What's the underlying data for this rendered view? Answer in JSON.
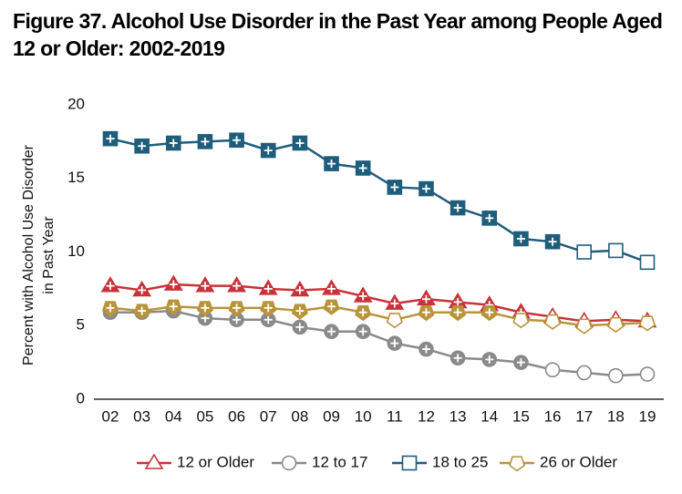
{
  "chart_data": {
    "type": "line",
    "title": "Figure 37. Alcohol Use Disorder in the Past Year among People Aged 12 or Older: 2002-2019",
    "ylabel": [
      "Percent with Alcohol Use Disorder",
      "in Past Year"
    ],
    "categories": [
      "02",
      "03",
      "04",
      "05",
      "06",
      "07",
      "08",
      "09",
      "10",
      "11",
      "12",
      "13",
      "14",
      "15",
      "16",
      "17",
      "18",
      "19"
    ],
    "ylim": [
      0,
      20
    ],
    "yticks": [
      0,
      5,
      10,
      15,
      20
    ],
    "grid": false,
    "legend": "bottom",
    "series": [
      {
        "name": "12 or Older",
        "color": "#c8323a",
        "marker": "triangle",
        "values": [
          7.7,
          7.4,
          7.8,
          7.7,
          7.7,
          7.5,
          7.4,
          7.5,
          7.0,
          6.5,
          6.8,
          6.6,
          6.4,
          5.9,
          5.6,
          5.3,
          5.4,
          5.3
        ],
        "filled": [
          true,
          true,
          true,
          true,
          true,
          true,
          true,
          true,
          true,
          true,
          true,
          true,
          true,
          true,
          false,
          false,
          false,
          false
        ]
      },
      {
        "name": "12 to 17",
        "color": "#8a8a8a",
        "marker": "circle",
        "values": [
          5.9,
          5.9,
          6.0,
          5.5,
          5.4,
          5.4,
          4.9,
          4.6,
          4.6,
          3.8,
          3.4,
          2.8,
          2.7,
          2.5,
          2.0,
          1.8,
          1.6,
          1.7
        ],
        "filled": [
          true,
          true,
          true,
          true,
          true,
          true,
          true,
          true,
          true,
          true,
          true,
          true,
          true,
          true,
          false,
          false,
          false,
          false
        ]
      },
      {
        "name": "18 to 25",
        "color": "#1f5e7a",
        "marker": "square",
        "values": [
          17.7,
          17.2,
          17.4,
          17.5,
          17.6,
          16.9,
          17.4,
          16.0,
          15.7,
          14.4,
          14.3,
          13.0,
          12.3,
          10.9,
          10.7,
          10.0,
          10.1,
          9.3
        ],
        "filled": [
          true,
          true,
          true,
          true,
          true,
          true,
          true,
          true,
          true,
          true,
          true,
          true,
          true,
          true,
          true,
          false,
          false,
          false
        ]
      },
      {
        "name": "26 or Older",
        "color": "#b8953a",
        "marker": "pentagon",
        "values": [
          6.2,
          6.0,
          6.3,
          6.2,
          6.2,
          6.2,
          6.0,
          6.3,
          5.9,
          5.4,
          5.9,
          5.9,
          5.9,
          5.4,
          5.3,
          5.0,
          5.1,
          5.2
        ],
        "filled": [
          true,
          true,
          true,
          true,
          true,
          true,
          true,
          true,
          true,
          false,
          true,
          true,
          true,
          false,
          false,
          false,
          false,
          false
        ]
      }
    ]
  }
}
